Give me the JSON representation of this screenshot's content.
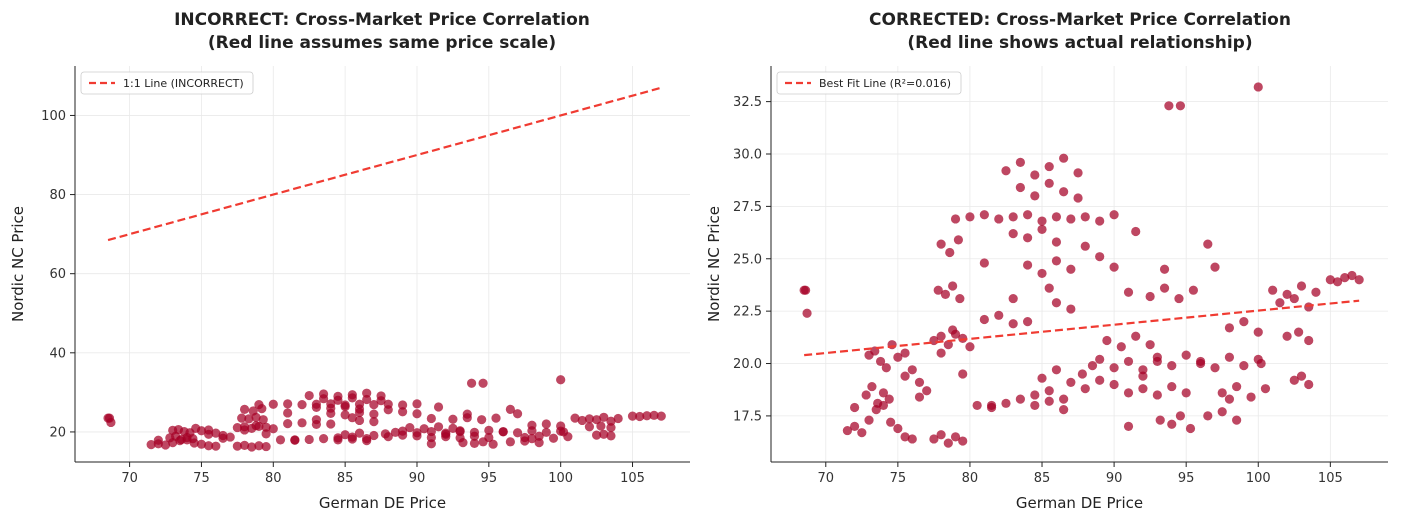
{
  "colors": {
    "points": "#a50026",
    "line": "#f03b32",
    "legend_border": "#cccccc"
  },
  "chart_data": [
    {
      "type": "scatter",
      "title_line1": "INCORRECT: Cross-Market Price Correlation",
      "title_line2": "(Red line assumes same price scale)",
      "xlabel": "German DE Price",
      "ylabel": "Nordic NC Price",
      "xlim": [
        66.2,
        109.0
      ],
      "ylim": [
        12.4,
        112.5
      ],
      "xticks": [
        70,
        75,
        80,
        85,
        90,
        95,
        100,
        105
      ],
      "yticks": [
        20,
        40,
        60,
        80,
        100
      ],
      "ytick_decimals": 0,
      "grid": true,
      "legend_position": "upper-left",
      "legend_label": "1:1 Line (INCORRECT)",
      "line": {
        "x": [
          68.5,
          107.0
        ],
        "y": [
          68.5,
          107.0
        ]
      },
      "series": [
        {
          "ref": "shared_scatter"
        }
      ]
    },
    {
      "type": "scatter",
      "title_line1": "CORRECTED: Cross-Market Price Correlation",
      "title_line2": "(Red line shows actual relationship)",
      "xlabel": "German DE Price",
      "ylabel": "Nordic NC Price",
      "xlim": [
        66.2,
        109.0
      ],
      "ylim": [
        15.3,
        34.2
      ],
      "xticks": [
        70,
        75,
        80,
        85,
        90,
        95,
        100,
        105
      ],
      "yticks": [
        17.5,
        20.0,
        22.5,
        25.0,
        27.5,
        30.0,
        32.5
      ],
      "ytick_decimals": 1,
      "grid": true,
      "legend_position": "upper-left",
      "legend_label": "Best Fit Line (R²=0.016)",
      "line": {
        "x": [
          68.5,
          107.0
        ],
        "y": [
          20.4,
          23.0
        ]
      },
      "series": [
        {
          "ref": "shared_scatter"
        }
      ]
    }
  ],
  "shared_scatter": {
    "x": [
      68.5,
      68.7,
      68.6,
      100.0,
      93.8,
      94.6,
      71.5,
      72.0,
      72.5,
      73.0,
      73.5,
      74.0,
      74.5,
      75.0,
      75.5,
      76.0,
      73.0,
      73.4,
      73.8,
      74.2,
      74.6,
      75.0,
      72.8,
      73.2,
      73.6,
      74.0,
      74.4,
      75.5,
      76.0,
      76.5,
      77.0,
      77.5,
      78.0,
      78.5,
      79.0,
      79.5,
      80.0,
      78.0,
      78.8,
      77.5,
      78.0,
      78.5,
      79.0,
      79.5,
      77.8,
      78.3,
      78.8,
      79.3,
      78.0,
      78.6,
      79.2,
      79.0,
      80.0,
      81.0,
      82.0,
      83.0,
      84.0,
      85.0,
      86.0,
      87.0,
      88.0,
      89.0,
      90.0,
      80.5,
      81.5,
      82.5,
      83.5,
      84.5,
      85.5,
      86.5,
      81.0,
      82.0,
      83.0,
      84.0,
      82.5,
      83.5,
      84.5,
      85.5,
      86.5,
      87.5,
      83.5,
      84.5,
      85.5,
      86.5,
      87.5,
      83.0,
      84.0,
      85.0,
      86.0,
      84.0,
      85.0,
      86.0,
      87.0,
      85.0,
      86.0,
      87.0,
      87.8,
      84.5,
      85.5,
      86.5,
      88.5,
      89.0,
      90.0,
      91.0,
      92.0,
      93.0,
      88.0,
      89.0,
      90.0,
      91.0,
      92.0,
      89.5,
      90.5,
      91.5,
      92.5,
      93.0,
      94.0,
      95.0,
      96.0,
      92.0,
      93.0,
      94.0,
      95.0,
      91.0,
      92.5,
      93.5,
      94.5,
      95.5,
      93.2,
      94.0,
      94.6,
      95.3,
      96.0,
      97.0,
      98.0,
      99.0,
      100.0,
      97.5,
      98.5,
      99.5,
      100.5,
      96.5,
      97.5,
      98.5,
      98.0,
      99.0,
      100.0,
      101.0,
      102.0,
      103.0,
      104.0,
      101.5,
      102.5,
      103.5,
      102.0,
      102.8,
      103.5,
      102.5,
      103.0,
      103.5,
      105.0,
      105.5,
      106.0,
      106.5,
      107.0,
      90.0,
      89.0,
      88.0,
      91.5,
      96.5,
      97.0,
      86.0,
      85.5,
      83.0,
      81.0,
      72.0,
      75.5,
      76.5,
      79.5,
      81.5,
      87.0,
      91.0,
      93.5,
      98.0,
      100.2
    ],
    "y": [
      23.5,
      22.4,
      23.5,
      33.2,
      32.3,
      32.3,
      16.8,
      17.0,
      16.7,
      17.3,
      17.8,
      18.0,
      17.2,
      16.9,
      16.5,
      16.4,
      20.4,
      20.6,
      20.1,
      19.8,
      20.9,
      20.3,
      18.5,
      18.9,
      18.1,
      18.6,
      18.3,
      19.4,
      19.7,
      19.1,
      18.7,
      21.1,
      21.3,
      20.9,
      21.4,
      21.2,
      20.8,
      20.5,
      21.6,
      16.4,
      16.6,
      16.2,
      16.5,
      16.3,
      23.5,
      23.3,
      23.7,
      23.1,
      25.7,
      25.3,
      25.9,
      26.9,
      27.0,
      27.1,
      26.9,
      27.0,
      27.1,
      26.8,
      27.0,
      26.9,
      27.0,
      26.8,
      27.1,
      18.0,
      17.9,
      18.1,
      18.3,
      18.0,
      18.2,
      17.8,
      22.1,
      22.3,
      21.9,
      22.0,
      29.2,
      29.6,
      29.0,
      29.4,
      29.8,
      29.1,
      28.4,
      28.0,
      28.6,
      28.2,
      27.9,
      26.2,
      26.0,
      26.4,
      25.8,
      24.7,
      24.3,
      24.9,
      24.5,
      19.3,
      19.7,
      19.1,
      19.5,
      18.5,
      18.7,
      18.3,
      19.9,
      20.2,
      19.8,
      20.1,
      19.7,
      20.3,
      18.8,
      19.2,
      19.0,
      18.6,
      19.4,
      21.1,
      20.8,
      21.3,
      20.9,
      20.1,
      19.9,
      20.4,
      20.0,
      18.8,
      18.5,
      18.9,
      18.6,
      23.4,
      23.2,
      23.6,
      23.1,
      23.5,
      17.3,
      17.1,
      17.5,
      16.9,
      20.1,
      19.8,
      20.3,
      19.9,
      20.2,
      18.6,
      18.9,
      18.4,
      18.8,
      17.5,
      17.7,
      17.3,
      21.7,
      22.0,
      21.5,
      23.5,
      23.3,
      23.7,
      23.4,
      22.9,
      23.1,
      22.7,
      21.3,
      21.5,
      21.1,
      19.2,
      19.4,
      19.0,
      24.0,
      23.9,
      24.1,
      24.2,
      24.0,
      24.6,
      25.1,
      25.6,
      26.3,
      25.7,
      24.6,
      22.9,
      23.6,
      23.1,
      24.8,
      17.9,
      20.5,
      18.4,
      19.5,
      18.0,
      22.6,
      17.0,
      24.5,
      18.3,
      20.0
    ]
  }
}
